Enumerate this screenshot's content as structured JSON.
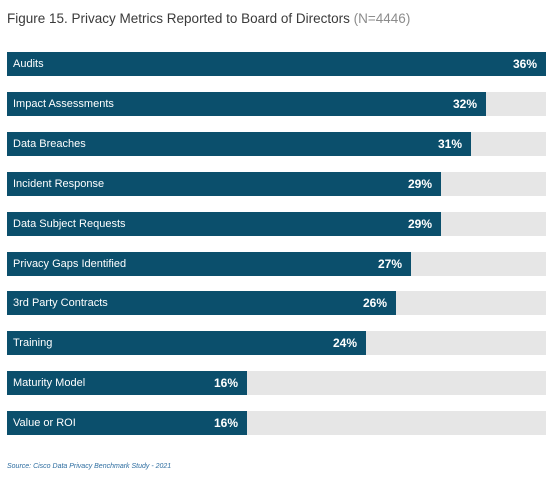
{
  "header": {
    "title": "Figure 15. Privacy Metrics Reported to Board of Directors",
    "sample": "(N=4446)"
  },
  "footer": {
    "source": "Source: Cisco Data Privacy Benchmark Study - 2021"
  },
  "colors": {
    "bar": "#0b4f6c",
    "track": "#e6e6e6"
  },
  "chart_data": {
    "type": "bar",
    "orientation": "horizontal",
    "categories": [
      "Audits",
      "Impact Assessments",
      "Data Breaches",
      "Incident Response",
      "Data Subject Requests",
      "Privacy Gaps Identified",
      "3rd Party Contracts",
      "Training",
      "Maturity Model",
      "Value or ROI"
    ],
    "values": [
      36,
      32,
      31,
      29,
      29,
      27,
      26,
      24,
      16,
      16
    ],
    "value_labels": [
      "36%",
      "32%",
      "31%",
      "29%",
      "29%",
      "27%",
      "26%",
      "24%",
      "16%",
      "16%"
    ],
    "xlim": [
      0,
      36
    ],
    "grid": false,
    "legend": "none"
  }
}
